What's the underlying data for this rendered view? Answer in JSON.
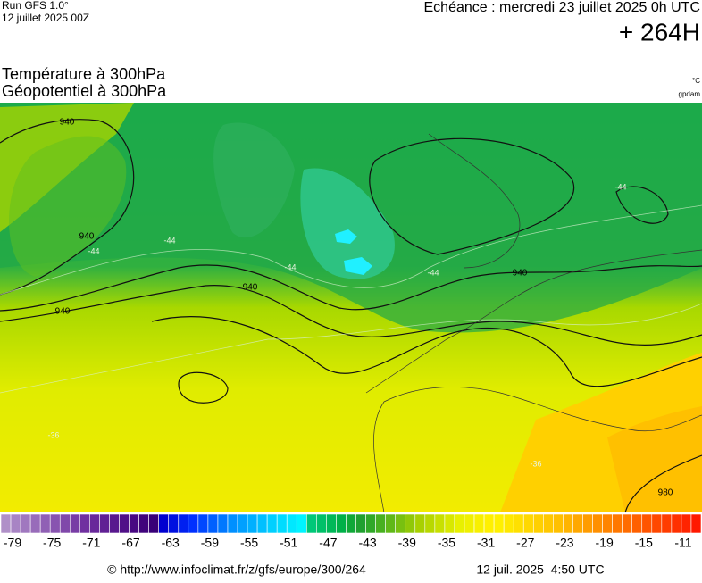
{
  "header": {
    "run": "Run GFS 1.0°",
    "run_date": "12 juillet 2025 00Z",
    "valid_time": "Echéance : mercredi 23 juillet 2025 0h UTC",
    "lead": "+ 264H",
    "field1": "Température à 300hPa",
    "field2": "Géopotentiel à 300hPa",
    "unit1": "°C",
    "unit2": "gpdam"
  },
  "map": {
    "contour_labels": [
      "940",
      "940",
      "940",
      "940",
      "940",
      "980"
    ],
    "isotherm_labels": [
      "-44",
      "-44",
      "-44",
      "-44",
      "-44",
      "-36",
      "-36"
    ]
  },
  "colorbar": {
    "ticks": [
      -79,
      -75,
      -71,
      -67,
      -63,
      -59,
      -55,
      -51,
      -47,
      -43,
      -39,
      -35,
      -31,
      -27,
      -23,
      -19,
      -15,
      -11
    ],
    "colors": [
      "#b090c8",
      "#a884c4",
      "#a078bf",
      "#986cba",
      "#9060b5",
      "#8854b0",
      "#8048aa",
      "#783ca5",
      "#7030a0",
      "#68289a",
      "#602094",
      "#58188e",
      "#501088",
      "#480882",
      "#40047c",
      "#380078",
      "#0000d0",
      "#0010e0",
      "#0020f0",
      "#0030ff",
      "#0048ff",
      "#0060ff",
      "#0078ff",
      "#0090ff",
      "#00a0ff",
      "#00b0ff",
      "#00c0ff",
      "#00d0ff",
      "#00dcff",
      "#00e8ff",
      "#00f4ff",
      "#00c878",
      "#00c068",
      "#00b858",
      "#00b048",
      "#10a838",
      "#20a030",
      "#30a828",
      "#48b020",
      "#60b818",
      "#78c010",
      "#90c808",
      "#a8d000",
      "#b8d800",
      "#c8e000",
      "#d8e800",
      "#e8f000",
      "#f0f000",
      "#f8f000",
      "#fff000",
      "#fff000",
      "#ffe800",
      "#ffe000",
      "#ffd800",
      "#ffd000",
      "#ffc800",
      "#ffc000",
      "#ffb400",
      "#ffa800",
      "#ff9c00",
      "#ff9000",
      "#ff8400",
      "#ff7800",
      "#ff6c00",
      "#ff6000",
      "#ff5400",
      "#ff4800",
      "#ff3c00",
      "#ff3000",
      "#ff2400",
      "#ff1800"
    ]
  },
  "footer": {
    "source": "© http://www.infoclimat.fr/z/gfs/europe/300/264",
    "timestamp": "12 juil. 2025  4:50 UTC"
  }
}
